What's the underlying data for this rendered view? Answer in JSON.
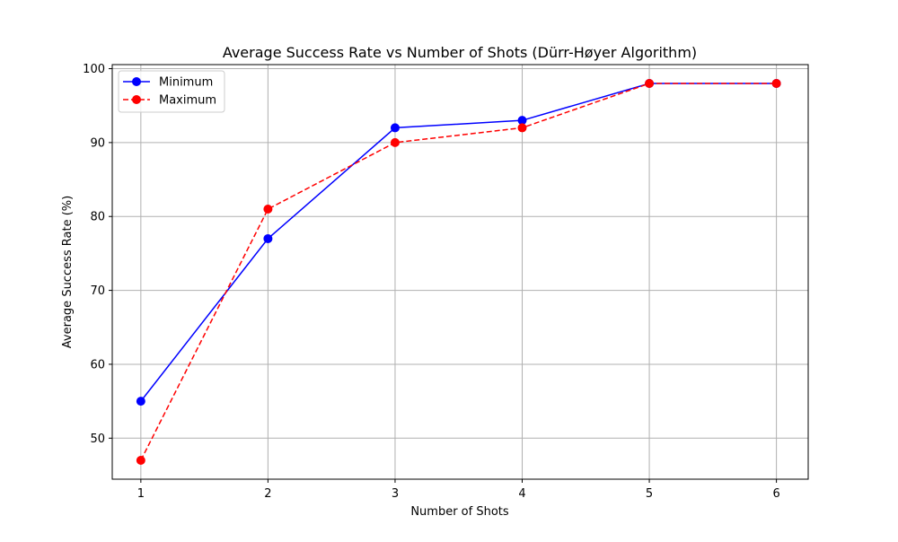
{
  "chart_data": {
    "type": "line",
    "title": "Average Success Rate vs Number of Shots (Dürr-Høyer Algorithm)",
    "xlabel": "Number of Shots",
    "ylabel": "Average Success Rate (%)",
    "x": [
      1,
      2,
      3,
      4,
      5,
      6
    ],
    "xticks": [
      1,
      2,
      3,
      4,
      5,
      6
    ],
    "yticks": [
      50,
      60,
      70,
      80,
      90,
      100
    ],
    "xlim": [
      0.775,
      6.25
    ],
    "ylim": [
      44.45,
      100.55
    ],
    "grid": true,
    "legend_position": "top-left",
    "series": [
      {
        "name": "Minimum",
        "values": [
          55,
          77,
          92,
          93,
          98,
          98
        ],
        "color": "#0000ff",
        "line_style": "solid",
        "marker": "circle"
      },
      {
        "name": "Maximum",
        "values": [
          47,
          81,
          90,
          92,
          98,
          98
        ],
        "color": "#ff0000",
        "line_style": "dashed",
        "marker": "circle"
      }
    ]
  }
}
